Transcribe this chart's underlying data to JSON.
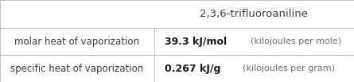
{
  "title": "2,3,6-trifluoroaniline",
  "rows": [
    {
      "label": "molar heat of vaporization",
      "value_bold": "39.3 kJ/mol",
      "value_light": "  (kilojoules per mole)"
    },
    {
      "label": "specific heat of vaporization",
      "value_bold": "0.267 kJ/g",
      "value_light": "  (kilojoules per gram)"
    }
  ],
  "col_split": 0.435,
  "background_color": "#ffffff",
  "border_color": "#c0c0c0",
  "text_color_label": "#404040",
  "text_color_value_bold": "#1a1a1a",
  "text_color_value_light": "#707070",
  "title_color": "#404040",
  "font_size_title": 9.5,
  "font_size_label": 8.5,
  "font_size_value_bold": 9,
  "font_size_value_light": 8
}
